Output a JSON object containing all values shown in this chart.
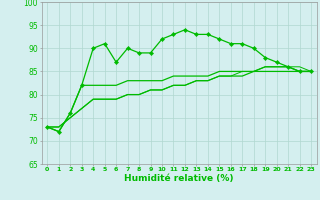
{
  "x": [
    0,
    1,
    2,
    3,
    4,
    5,
    6,
    7,
    8,
    9,
    10,
    11,
    12,
    13,
    14,
    15,
    16,
    17,
    18,
    19,
    20,
    21,
    22,
    23
  ],
  "line1": [
    73,
    72,
    76,
    82,
    90,
    91,
    87,
    90,
    89,
    89,
    92,
    93,
    94,
    93,
    93,
    92,
    91,
    91,
    90,
    88,
    87,
    86,
    85,
    85
  ],
  "line2": [
    73,
    72,
    76,
    82,
    82,
    82,
    82,
    83,
    83,
    83,
    83,
    84,
    84,
    84,
    84,
    85,
    85,
    85,
    85,
    86,
    86,
    86,
    85,
    85
  ],
  "line3": [
    73,
    73,
    75,
    77,
    79,
    79,
    79,
    80,
    80,
    81,
    81,
    82,
    82,
    83,
    83,
    84,
    84,
    84,
    85,
    85,
    85,
    85,
    85,
    85
  ],
  "line4": [
    73,
    73,
    75,
    77,
    79,
    79,
    79,
    80,
    80,
    81,
    81,
    82,
    82,
    83,
    83,
    84,
    84,
    85,
    85,
    86,
    86,
    86,
    86,
    85
  ],
  "xlabel": "Humidité relative (%)",
  "ylim": [
    65,
    100
  ],
  "xlim": [
    -0.5,
    23.5
  ],
  "yticks": [
    65,
    70,
    75,
    80,
    85,
    90,
    95,
    100
  ],
  "xticks": [
    0,
    1,
    2,
    3,
    4,
    5,
    6,
    7,
    8,
    9,
    10,
    11,
    12,
    13,
    14,
    15,
    16,
    17,
    18,
    19,
    20,
    21,
    22,
    23
  ],
  "line_color": "#00bb00",
  "bg_color": "#d4efef",
  "grid_color": "#b0d8d0",
  "marker": "D",
  "marker_size": 2.2,
  "xlabel_fontsize": 6.5,
  "xtick_fontsize": 4.5,
  "ytick_fontsize": 5.5
}
